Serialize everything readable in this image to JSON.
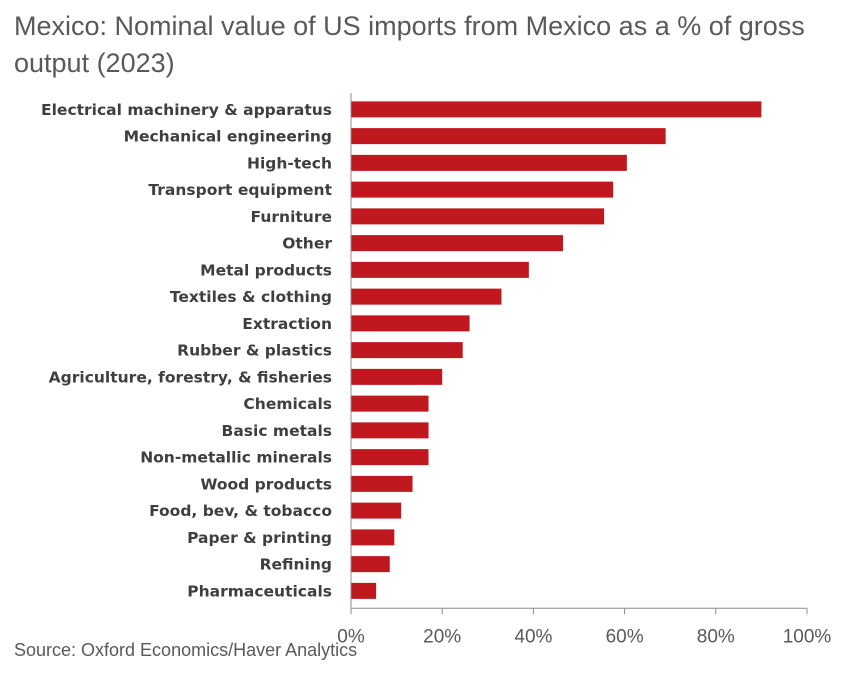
{
  "chart_data": {
    "type": "bar",
    "orientation": "horizontal",
    "title": "Mexico: Nominal value of US imports from Mexico as a % of gross output (2023)",
    "categories": [
      "Electrical machinery & apparatus",
      "Mechanical engineering",
      "High-tech",
      "Transport equipment",
      "Furniture",
      "Other",
      "Metal products",
      "Textiles & clothing",
      "Extraction",
      "Rubber & plastics",
      "Agriculture, forestry, & fisheries",
      "Chemicals",
      "Basic metals",
      "Non-metallic minerals",
      "Wood products",
      "Food, bev, & tobacco",
      "Paper & printing",
      "Refining",
      "Pharmaceuticals"
    ],
    "values": [
      90,
      69,
      60.5,
      57.5,
      55.5,
      46.5,
      39,
      33,
      26,
      24.5,
      20,
      17,
      17,
      17,
      13.5,
      11,
      9.5,
      8.5,
      5.5
    ],
    "xlim": [
      0,
      100
    ],
    "x_ticks": [
      "0%",
      "20%",
      "40%",
      "60%",
      "80%",
      "100%"
    ],
    "bar_color": "#c0181f",
    "grid": false,
    "source": "Source: Oxford Economics/Haver Analytics"
  }
}
